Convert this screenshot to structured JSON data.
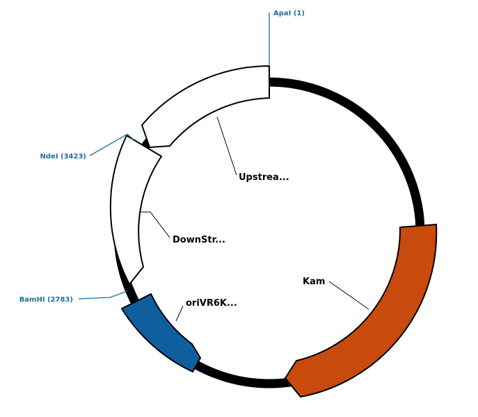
{
  "restriction_sites": [
    {
      "label": "ApaI (1)"
    },
    {
      "label": "NdeI (3423)"
    },
    {
      "label": "BamHI (2783)"
    }
  ],
  "features": [
    {
      "label": "Upstrea...",
      "fill": "#ffffff"
    },
    {
      "label": "DownStr...",
      "fill": "#ffffff"
    },
    {
      "label": "oriVR6K...",
      "fill": "#0f5e9e"
    },
    {
      "label": "Kam",
      "fill": "#c84a0c"
    }
  ],
  "colors": {
    "backbone": "#000000",
    "site_line": "#1f6f9e",
    "site_text": "#1f6f9e"
  }
}
